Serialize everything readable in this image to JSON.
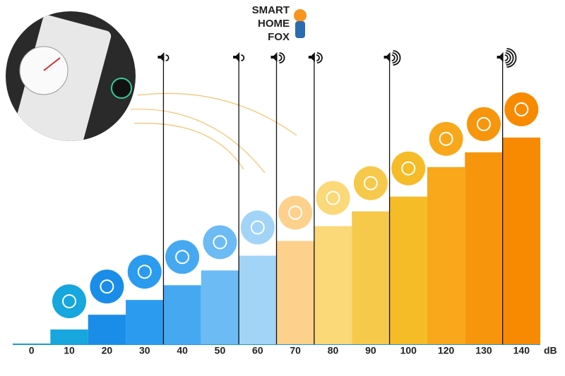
{
  "chart_data": {
    "type": "bar",
    "logo": [
      "SMART",
      "HOME",
      "FOX"
    ],
    "unit": "dB",
    "categories": [
      "0",
      "10",
      "20",
      "30",
      "40",
      "50",
      "60",
      "70",
      "80",
      "90",
      "100",
      "120",
      "130",
      "140"
    ],
    "values": [
      0,
      10,
      20,
      30,
      40,
      50,
      60,
      70,
      80,
      90,
      100,
      120,
      130,
      140
    ],
    "colors": [
      "#1b9ad6",
      "#17a6dd",
      "#1a8de8",
      "#2b9bf0",
      "#47a8f2",
      "#6cbbf5",
      "#a2d4f7",
      "#fdd08c",
      "#fbd878",
      "#f7c94a",
      "#f5bc28",
      "#f8a81a",
      "#f7960c",
      "#f78a00"
    ],
    "ylim": [
      0,
      140
    ]
  }
}
